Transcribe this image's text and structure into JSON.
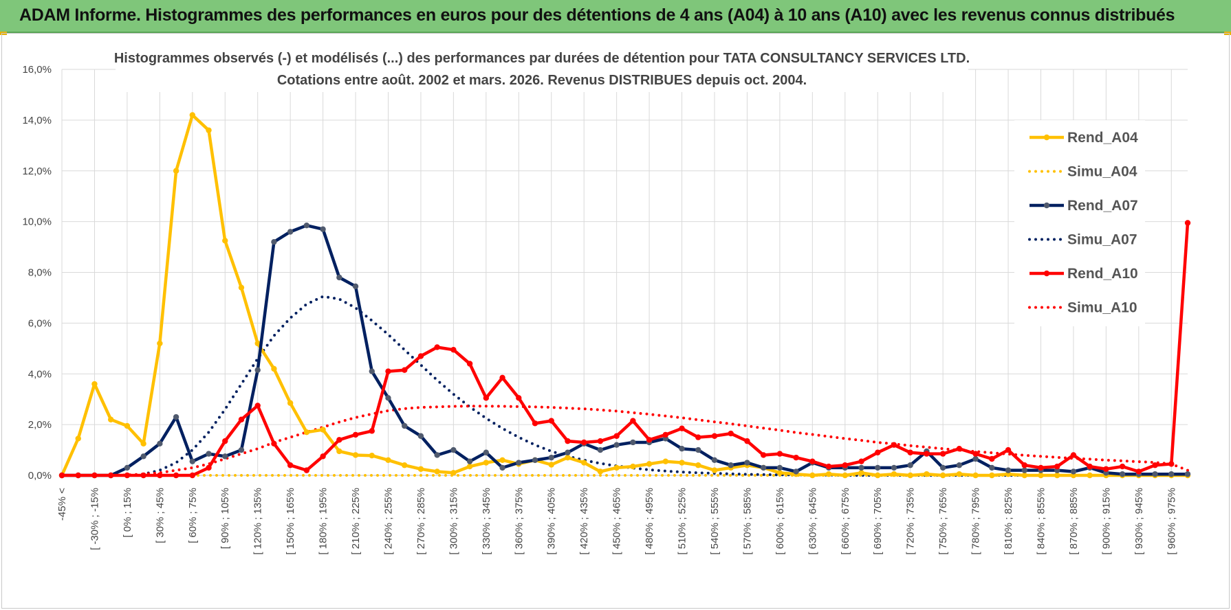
{
  "banner": {
    "title": "ADAM Informe. Histogrammes des performances en euros pour des détentions de 4 ans (A04) à 10 ans (A10) avec les revenus connus distribués"
  },
  "colors": {
    "banner_bg": "#7fc67a",
    "a04": "#ffc000",
    "a07": "#002060",
    "a10": "#ff0000",
    "grid": "#d9d9d9"
  },
  "chart_data": {
    "type": "line",
    "title_line1": "Histogrammes observés (-) et modélisés (...) des performances par durées de détention pour TATA  CONSULTANCY SERVICES LTD.",
    "title_line2": "Cotations entre août. 2002 et mars. 2026. Revenus DISTRIBUES depuis oct. 2004.",
    "ylim": [
      0,
      16
    ],
    "yticks": [
      "0,0%",
      "2,0%",
      "4,0%",
      "6,0%",
      "8,0%",
      "10,0%",
      "12,0%",
      "14,0%",
      "16,0%"
    ],
    "xlabels": [
      "-45% <",
      "[ -30% ; -15%",
      "[ 0% ; 15%",
      "[ 30% ; 45%",
      "[ 60% ; 75%",
      "[ 90% ; 105%",
      "[ 120% ; 135%",
      "[ 150% ; 165%",
      "[ 180% ; 195%",
      "[ 210% ; 225%",
      "[ 240% ; 255%",
      "[ 270% ; 285%",
      "[ 300% ; 315%",
      "[ 330% ; 345%",
      "[ 360% ; 375%",
      "[ 390% ; 405%",
      "[ 420% ; 435%",
      "[ 450% ; 465%",
      "[ 480% ; 495%",
      "[ 510% ; 525%",
      "[ 540% ; 555%",
      "[ 570% ; 585%",
      "[ 600% ; 615%",
      "[ 630% ; 645%",
      "[ 660% ; 675%",
      "[ 690% ; 705%",
      "[ 720% ; 735%",
      "[ 750% ; 765%",
      "[ 780% ; 795%",
      "[ 810% ; 825%",
      "[ 840% ; 855%",
      "[ 870% ; 885%",
      "[ 900% ; 915%",
      "[ 930% ; 945%",
      "[ 960% ; 975%"
    ],
    "n_categories": 70,
    "series": [
      {
        "name": "Rend_A04",
        "style": "solid",
        "color": "#ffc000",
        "marker": true,
        "values": [
          0.0,
          1.45,
          3.6,
          2.2,
          1.95,
          1.25,
          5.2,
          12.0,
          14.2,
          13.6,
          9.25,
          7.4,
          5.2,
          4.2,
          2.85,
          1.7,
          1.8,
          0.95,
          0.8,
          0.78,
          0.6,
          0.4,
          0.25,
          0.15,
          0.1,
          0.35,
          0.5,
          0.6,
          0.45,
          0.6,
          0.42,
          0.7,
          0.5,
          0.15,
          0.3,
          0.35,
          0.45,
          0.55,
          0.5,
          0.4,
          0.2,
          0.3,
          0.4,
          0.3,
          0.1,
          0.05,
          0.0,
          0.05,
          0.0,
          0.1,
          0.0,
          0.05,
          0.0,
          0.05,
          0.0,
          0.05,
          0.0,
          0.0,
          0.05,
          0.0,
          0.0,
          0.0,
          0.0,
          0.0,
          0.0,
          0.0,
          0.0,
          0.0,
          0.0,
          0.0
        ]
      },
      {
        "name": "Simu_A04",
        "style": "dotted",
        "color": "#ffc000",
        "marker": false,
        "values": [
          0,
          0,
          0,
          0,
          0,
          0,
          0,
          0,
          0,
          0,
          0,
          0,
          0,
          0,
          0,
          0,
          0,
          0,
          0,
          0,
          0,
          0,
          0,
          0,
          0,
          0,
          0,
          0,
          0,
          0,
          0,
          0,
          0,
          0,
          0,
          0,
          0,
          0,
          0,
          0,
          0,
          0,
          0,
          0,
          0,
          0,
          0,
          0,
          0,
          0,
          0,
          0,
          0,
          0,
          0,
          0,
          0,
          0,
          0,
          0,
          0,
          0,
          0,
          0,
          0,
          0,
          0,
          0,
          0,
          0
        ]
      },
      {
        "name": "Rend_A07",
        "style": "solid",
        "color": "#002060",
        "marker": true,
        "values": [
          0.0,
          0.0,
          0.0,
          0.0,
          0.3,
          0.75,
          1.25,
          2.3,
          0.55,
          0.85,
          0.75,
          1.0,
          4.15,
          9.2,
          9.6,
          9.85,
          9.7,
          7.8,
          7.45,
          4.1,
          3.05,
          1.95,
          1.55,
          0.8,
          1.0,
          0.55,
          0.9,
          0.3,
          0.5,
          0.6,
          0.7,
          0.9,
          1.25,
          1.0,
          1.2,
          1.3,
          1.3,
          1.45,
          1.05,
          1.0,
          0.6,
          0.4,
          0.5,
          0.3,
          0.3,
          0.15,
          0.5,
          0.3,
          0.3,
          0.3,
          0.3,
          0.3,
          0.4,
          0.95,
          0.3,
          0.4,
          0.65,
          0.3,
          0.2,
          0.2,
          0.2,
          0.2,
          0.15,
          0.3,
          0.1,
          0.05,
          0.05,
          0.05,
          0.05,
          0.05
        ]
      },
      {
        "name": "Simu_A07",
        "style": "dotted",
        "color": "#002060",
        "marker": false,
        "values": [
          0.0,
          0.0,
          0.0,
          0.0,
          0.0,
          0.05,
          0.2,
          0.5,
          1.0,
          1.7,
          2.6,
          3.6,
          4.6,
          5.5,
          6.2,
          6.75,
          7.05,
          6.95,
          6.6,
          6.1,
          5.55,
          4.95,
          4.35,
          3.75,
          3.2,
          2.7,
          2.25,
          1.85,
          1.5,
          1.2,
          0.95,
          0.75,
          0.6,
          0.47,
          0.37,
          0.29,
          0.22,
          0.17,
          0.13,
          0.1,
          0.08,
          0.06,
          0.04,
          0.03,
          0.02,
          0.02,
          0.01,
          0.01,
          0.0,
          0.0,
          0.0,
          0.0,
          0.0,
          0.0,
          0.0,
          0.0,
          0.0,
          0.0,
          0.0,
          0.0,
          0.0,
          0.0,
          0.0,
          0.0,
          0.0,
          0.0,
          0.0,
          0.0,
          0.0,
          0.0
        ]
      },
      {
        "name": "Rend_A10",
        "style": "solid",
        "color": "#ff0000",
        "marker": true,
        "values": [
          0.0,
          0.0,
          0.0,
          0.0,
          0.0,
          0.0,
          0.0,
          0.0,
          0.0,
          0.3,
          1.35,
          2.2,
          2.75,
          1.25,
          0.4,
          0.2,
          0.75,
          1.4,
          1.6,
          1.75,
          4.1,
          4.15,
          4.7,
          5.05,
          4.95,
          4.4,
          3.05,
          3.85,
          3.05,
          2.05,
          2.15,
          1.35,
          1.3,
          1.35,
          1.55,
          2.15,
          1.4,
          1.6,
          1.85,
          1.5,
          1.55,
          1.65,
          1.35,
          0.8,
          0.85,
          0.7,
          0.55,
          0.35,
          0.4,
          0.55,
          0.9,
          1.2,
          0.9,
          0.85,
          0.85,
          1.05,
          0.85,
          0.65,
          1.0,
          0.4,
          0.3,
          0.35,
          0.8,
          0.35,
          0.25,
          0.35,
          0.15,
          0.4,
          0.45,
          9.95
        ]
      },
      {
        "name": "Simu_A10",
        "style": "dotted",
        "color": "#ff0000",
        "marker": false,
        "values": [
          0.0,
          0.0,
          0.0,
          0.0,
          0.02,
          0.05,
          0.1,
          0.2,
          0.3,
          0.45,
          0.65,
          0.85,
          1.05,
          1.3,
          1.5,
          1.7,
          1.9,
          2.1,
          2.28,
          2.42,
          2.55,
          2.63,
          2.68,
          2.7,
          2.72,
          2.73,
          2.73,
          2.72,
          2.71,
          2.7,
          2.68,
          2.65,
          2.62,
          2.58,
          2.53,
          2.47,
          2.41,
          2.34,
          2.27,
          2.19,
          2.11,
          2.03,
          1.95,
          1.86,
          1.78,
          1.69,
          1.61,
          1.53,
          1.45,
          1.38,
          1.3,
          1.24,
          1.17,
          1.11,
          1.05,
          0.99,
          0.94,
          0.89,
          0.84,
          0.79,
          0.75,
          0.71,
          0.67,
          0.64,
          0.6,
          0.57,
          0.54,
          0.51,
          0.45,
          0.2
        ]
      }
    ],
    "legend_position": "right"
  }
}
